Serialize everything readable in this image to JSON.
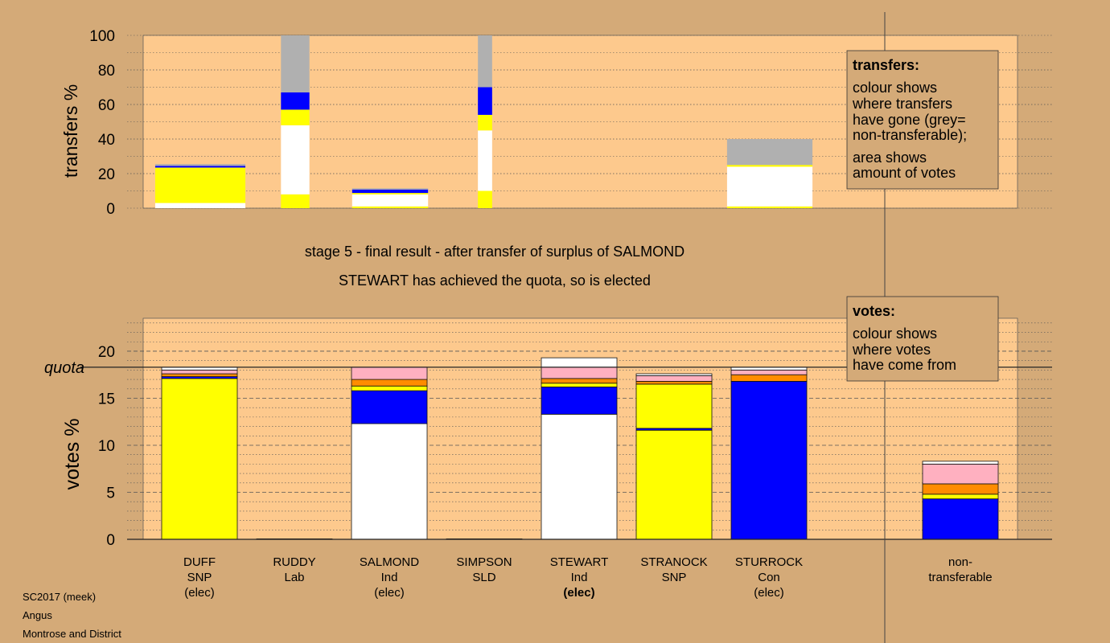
{
  "colors": {
    "background": "#d4aa78",
    "plot_background": "#fdc98d",
    "legend_background": "#d4aa78",
    "snp": "#ffff00",
    "ind": "#ffffff",
    "con": "#0000ff",
    "lab": "#ff8c00",
    "sld": "#ffb0c0",
    "nontransferable": "#b0b0b0"
  },
  "headings": {
    "line1": "stage 5 - final result - after transfer of surplus of SALMOND",
    "line2": "STEWART has achieved the quota, so is elected"
  },
  "legend_transfers": {
    "title": "transfers:",
    "lines": [
      "colour shows",
      "where transfers",
      "have gone (grey=",
      "non-transferable);",
      "area shows",
      "amount of votes"
    ]
  },
  "legend_votes": {
    "title": "votes:",
    "lines": [
      "colour shows",
      "where votes",
      "have come from"
    ]
  },
  "quota_label": "quota",
  "footer": {
    "line1": "SC2017 (meek)",
    "line2": "Angus",
    "line3": "Montrose and District"
  },
  "chart_data": [
    {
      "type": "bar",
      "stacked": true,
      "ylabel": "transfers %",
      "ylim": [
        0,
        100
      ],
      "yticks": [
        0,
        20,
        40,
        60,
        80,
        100
      ],
      "grid": "dotted",
      "bars": [
        {
          "x": 1,
          "width": 0.95,
          "segments": [
            {
              "color": "#ffffff",
              "from": 0,
              "to": 3
            },
            {
              "color": "#ffff00",
              "from": 3,
              "to": 23.5
            },
            {
              "color": "#0000ff",
              "from": 23.5,
              "to": 24.5
            },
            {
              "color": "#b0b0b0",
              "from": 24.5,
              "to": 25.5
            }
          ]
        },
        {
          "x": 2,
          "width": 0.3,
          "segments": [
            {
              "color": "#ffff00",
              "from": 0,
              "to": 8
            },
            {
              "color": "#ffffff",
              "from": 8,
              "to": 48
            },
            {
              "color": "#ffff00",
              "from": 48,
              "to": 57
            },
            {
              "color": "#0000ff",
              "from": 57,
              "to": 67
            },
            {
              "color": "#b0b0b0",
              "from": 67,
              "to": 100
            }
          ]
        },
        {
          "x": 3,
          "width": 0.8,
          "segments": [
            {
              "color": "#ffff00",
              "from": 0,
              "to": 1
            },
            {
              "color": "#ffffff",
              "from": 1,
              "to": 8
            },
            {
              "color": "#ffff00",
              "from": 8,
              "to": 8.8
            },
            {
              "color": "#0000ff",
              "from": 8.8,
              "to": 10.8
            },
            {
              "color": "#b0b0b0",
              "from": 10.8,
              "to": 11.5
            }
          ]
        },
        {
          "x": 4,
          "width": 0.15,
          "segments": [
            {
              "color": "#ffff00",
              "from": 0,
              "to": 10
            },
            {
              "color": "#ffffff",
              "from": 10,
              "to": 45
            },
            {
              "color": "#ffff00",
              "from": 45,
              "to": 54
            },
            {
              "color": "#0000ff",
              "from": 54,
              "to": 70
            },
            {
              "color": "#b0b0b0",
              "from": 70,
              "to": 100
            }
          ]
        },
        {
          "x": 7,
          "width": 0.9,
          "segments": [
            {
              "color": "#ffff00",
              "from": 0,
              "to": 1
            },
            {
              "color": "#ffffff",
              "from": 1,
              "to": 24
            },
            {
              "color": "#ffff00",
              "from": 24,
              "to": 25
            },
            {
              "color": "#b0b0b0",
              "from": 25,
              "to": 40
            }
          ]
        }
      ]
    },
    {
      "type": "bar",
      "stacked": true,
      "ylabel": "votes %",
      "ylim": [
        0,
        23.5
      ],
      "yticks": [
        0,
        5,
        10,
        15,
        20
      ],
      "grid": "dotted",
      "quota": 18.3,
      "categories": [
        {
          "name": "DUFF",
          "party": "SNP",
          "status": "(elec)"
        },
        {
          "name": "RUDDY",
          "party": "Lab",
          "status": ""
        },
        {
          "name": "SALMOND",
          "party": "Ind",
          "status": "(elec)"
        },
        {
          "name": "SIMPSON",
          "party": "SLD",
          "status": ""
        },
        {
          "name": "STEWART",
          "party": "Ind",
          "status": "(elec)"
        },
        {
          "name": "STRANOCK",
          "party": "SNP",
          "status": ""
        },
        {
          "name": "STURROCK",
          "party": "Con",
          "status": "(elec)"
        },
        {
          "name": "non-",
          "party": "transferable",
          "status": ""
        }
      ],
      "bars": [
        {
          "x": 1,
          "segments": [
            {
              "color": "#ffff00",
              "from": 0,
              "to": 17.1
            },
            {
              "color": "#0000ff",
              "from": 17.1,
              "to": 17.3
            },
            {
              "color": "#ff8c00",
              "from": 17.3,
              "to": 17.6
            },
            {
              "color": "#ffb0c0",
              "from": 17.6,
              "to": 18.0
            },
            {
              "color": "#ffffff",
              "from": 18.0,
              "to": 18.3
            }
          ]
        },
        {
          "x": 2,
          "segments": [
            {
              "color": "#ff8c00",
              "from": 0,
              "to": 0.05
            }
          ]
        },
        {
          "x": 3,
          "segments": [
            {
              "color": "#ffffff",
              "from": 0,
              "to": 12.3
            },
            {
              "color": "#0000ff",
              "from": 12.3,
              "to": 15.8
            },
            {
              "color": "#ffff00",
              "from": 15.8,
              "to": 16.3
            },
            {
              "color": "#ff8c00",
              "from": 16.3,
              "to": 17.0
            },
            {
              "color": "#ffb0c0",
              "from": 17.0,
              "to": 18.3
            }
          ]
        },
        {
          "x": 4,
          "segments": [
            {
              "color": "#ffb0c0",
              "from": 0,
              "to": 0.05
            }
          ]
        },
        {
          "x": 5,
          "segments": [
            {
              "color": "#ffffff",
              "from": 0,
              "to": 13.3
            },
            {
              "color": "#0000ff",
              "from": 13.3,
              "to": 16.2
            },
            {
              "color": "#ffff00",
              "from": 16.2,
              "to": 16.6
            },
            {
              "color": "#ff8c00",
              "from": 16.6,
              "to": 17.1
            },
            {
              "color": "#ffb0c0",
              "from": 17.1,
              "to": 18.3
            },
            {
              "color": "#ffffff",
              "from": 18.3,
              "to": 19.3
            }
          ]
        },
        {
          "x": 6,
          "segments": [
            {
              "color": "#ffff00",
              "from": 0,
              "to": 11.6
            },
            {
              "color": "#0000ff",
              "from": 11.6,
              "to": 11.8
            },
            {
              "color": "#ffff00",
              "from": 11.8,
              "to": 16.5
            },
            {
              "color": "#ff8c00",
              "from": 16.5,
              "to": 16.8
            },
            {
              "color": "#ffb0c0",
              "from": 16.8,
              "to": 17.4
            },
            {
              "color": "#ffffff",
              "from": 17.4,
              "to": 17.6
            }
          ]
        },
        {
          "x": 7,
          "segments": [
            {
              "color": "#0000ff",
              "from": 0,
              "to": 16.8
            },
            {
              "color": "#ff8c00",
              "from": 16.8,
              "to": 17.5
            },
            {
              "color": "#ffb0c0",
              "from": 17.5,
              "to": 18.0
            },
            {
              "color": "#ffffff",
              "from": 18.0,
              "to": 18.3
            }
          ]
        },
        {
          "x": 8,
          "segments": [
            {
              "color": "#0000ff",
              "from": 0,
              "to": 4.3
            },
            {
              "color": "#ffff00",
              "from": 4.3,
              "to": 4.8
            },
            {
              "color": "#ff8c00",
              "from": 4.8,
              "to": 5.9
            },
            {
              "color": "#ffb0c0",
              "from": 5.9,
              "to": 8.0
            },
            {
              "color": "#ffffff",
              "from": 8.0,
              "to": 8.3
            }
          ]
        }
      ]
    }
  ]
}
